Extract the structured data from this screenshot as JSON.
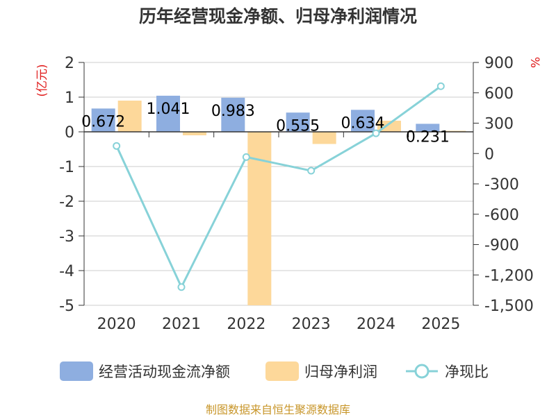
{
  "title": "历年经营现金净额、归母净利润情况",
  "source": "制图数据来自恒生聚源数据库",
  "colors": {
    "bar1": "#8eaee0",
    "bar2": "#fdd89a",
    "line": "#87d2d8",
    "axis": "#333333",
    "grid": "#cccccc",
    "unit": "#e01b1b"
  },
  "chart_data": {
    "type": "bar",
    "categories": [
      "2020",
      "2021",
      "2022",
      "2023",
      "2024",
      "2025"
    ],
    "y_left": {
      "unit": "(亿元)",
      "ticks": [
        "2",
        "1",
        "0",
        "-1",
        "-2",
        "-3",
        "-4",
        "-5"
      ],
      "ylim": [
        -5,
        2
      ]
    },
    "y_right": {
      "unit": "%",
      "ticks": [
        "900",
        "600",
        "300",
        "0",
        "-300",
        "-600",
        "-900",
        "-1,200",
        "-1,500"
      ],
      "ylim": [
        -1500,
        900
      ]
    },
    "series": [
      {
        "name": "经营活动现金流净额",
        "type": "bar",
        "axis": "left",
        "values": [
          0.672,
          1.041,
          0.983,
          0.555,
          0.634,
          0.231
        ],
        "labels": [
          "0.672",
          "1.041",
          "0.983",
          "0.555",
          "0.634",
          "0.231"
        ]
      },
      {
        "name": "归母净利润",
        "type": "bar",
        "axis": "left",
        "values": [
          0.9,
          -0.1,
          -5.0,
          -0.35,
          0.32,
          0.03
        ]
      },
      {
        "name": "净现比",
        "type": "line",
        "axis": "right",
        "values": [
          75,
          -1320,
          -35,
          -170,
          200,
          665
        ]
      }
    ],
    "legend_position": "bottom",
    "grid": true
  }
}
